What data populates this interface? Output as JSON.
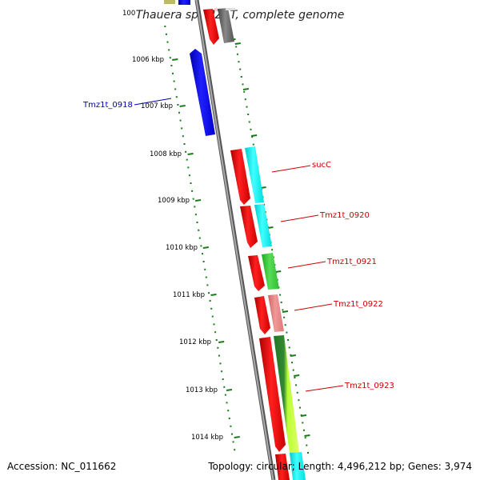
{
  "title": "Thauera sp. MZ1T, complete genome",
  "accession": "Accession: NC_011662",
  "topology": "Topology: circular; Length: 4,496,212 bp; Genes: 3,974",
  "ticks": [
    {
      "label": "1005 kbp",
      "shown": "100"
    },
    {
      "label": "1006 kbp"
    },
    {
      "label": "1007 kbp"
    },
    {
      "label": "1008 kbp"
    },
    {
      "label": "1009 kbp"
    },
    {
      "label": "1010 kbp"
    },
    {
      "label": "1011 kbp"
    },
    {
      "label": "1012 kbp"
    },
    {
      "label": "1013 kbp"
    },
    {
      "label": "1014 kbp"
    }
  ],
  "gene_labels": [
    {
      "name": "Tmz1t_0918",
      "color": "#0000aa"
    },
    {
      "name": "sucC",
      "color": "#cc0000"
    },
    {
      "name": "Tmz1t_0920",
      "color": "#cc0000"
    },
    {
      "name": "Tmz1t_0921",
      "color": "#cc0000"
    },
    {
      "name": "Tmz1t_0922",
      "color": "#cc0000"
    },
    {
      "name": "Tmz1t_0923",
      "color": "#cc0000"
    }
  ],
  "colors": {
    "backbone": "#888888",
    "gc_tick": "#1a7a1a",
    "cds": "#ff0000",
    "blast_cyan": "#00ffff",
    "blast_green": "#33cc33",
    "blast_pink": "#ee8888",
    "blast_lime": "#bbff33",
    "blast_darkgreen": "#228822",
    "blast_gray": "#666666",
    "blast_olive": "#bbbb66",
    "blue_gene": "#0000ff"
  }
}
